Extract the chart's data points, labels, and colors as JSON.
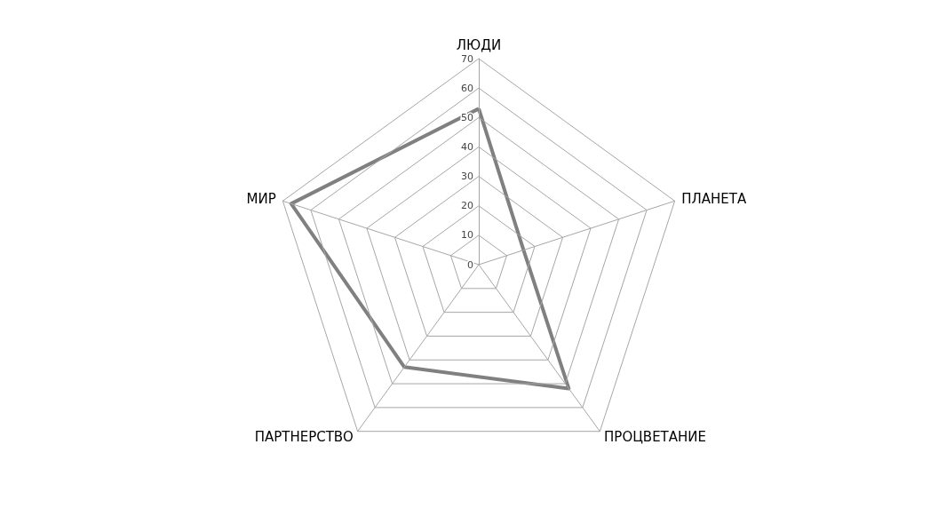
{
  "chart_data": {
    "type": "radar",
    "categories": [
      "ЛЮДИ",
      "ПЛАНЕТА",
      "ПРОЦВЕТАНИЕ",
      "ПАРТНЕРСТВО",
      "МИР"
    ],
    "series": [
      {
        "color": "#808080",
        "values": [
          53,
          16,
          52,
          43,
          67
        ]
      }
    ],
    "ylim": [
      0,
      70
    ],
    "yticks": [
      0,
      10,
      20,
      30,
      40,
      50,
      60,
      70
    ],
    "grid": true,
    "marker": "none",
    "line_style": "solid"
  }
}
